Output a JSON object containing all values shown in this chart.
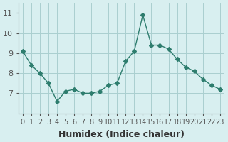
{
  "x": [
    0,
    1,
    2,
    3,
    4,
    5,
    6,
    7,
    8,
    9,
    10,
    11,
    12,
    13,
    14,
    15,
    16,
    17,
    18,
    19,
    20,
    21,
    22,
    23
  ],
  "y": [
    9.1,
    8.4,
    8.0,
    7.5,
    6.6,
    7.1,
    7.2,
    7.0,
    7.0,
    7.1,
    7.4,
    7.5,
    8.6,
    9.1,
    10.9,
    9.4,
    9.4,
    9.2,
    8.7,
    8.3,
    8.1,
    7.7,
    7.4,
    7.2
  ],
  "line_color": "#2e7d6e",
  "marker": "D",
  "marker_size": 3,
  "bg_color": "#d8eff0",
  "grid_color": "#aacfcf",
  "xlabel": "Humidex (Indice chaleur)",
  "ylim": [
    6.0,
    11.5
  ],
  "yticks": [
    7,
    8,
    9,
    10,
    11
  ],
  "xtick_labels": [
    "0",
    "1",
    "2",
    "3",
    "4",
    "5",
    "6",
    "7",
    "8",
    "9",
    "10",
    "11",
    "12",
    "13",
    "14",
    "15",
    "16",
    "17",
    "18",
    "19",
    "20",
    "21",
    "22",
    "23"
  ],
  "xlabel_fontsize": 9,
  "tick_fontsize": 8
}
